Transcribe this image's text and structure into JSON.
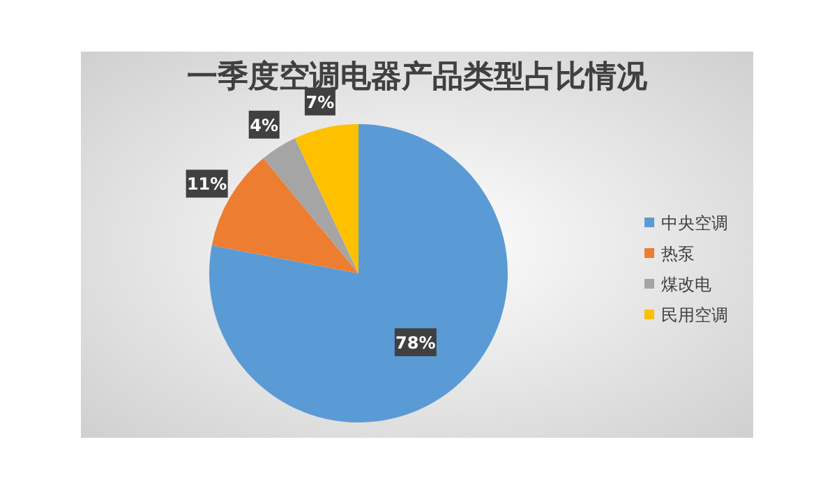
{
  "chart_data": {
    "type": "pie",
    "title": "一季度空调电器产品类型占比情况",
    "categories": [
      "中央空调",
      "热泵",
      "煤改电",
      "民用空调"
    ],
    "values": [
      78,
      11,
      4,
      7
    ],
    "colors": [
      "#5b9bd5",
      "#ed7d31",
      "#a5a5a5",
      "#ffc000"
    ],
    "value_labels": [
      "78%",
      "11%",
      "4%",
      "7%"
    ],
    "legend": "right"
  }
}
